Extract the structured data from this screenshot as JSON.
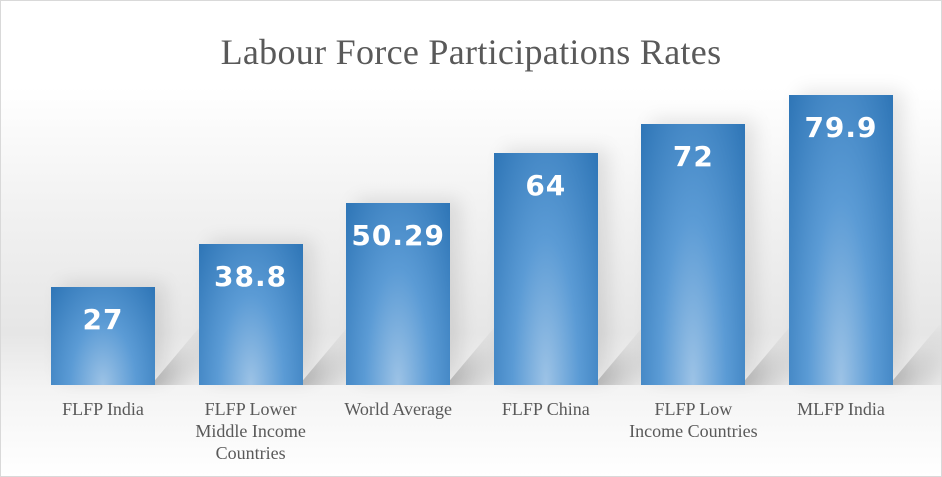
{
  "chart_data": {
    "type": "bar",
    "title": "Labour Force Participations Rates",
    "categories": [
      [
        "FLFP India"
      ],
      [
        "FLFP Lower",
        "Middle Income",
        "Countries"
      ],
      [
        "World Average"
      ],
      [
        "FLFP China"
      ],
      [
        "FLFP Low",
        "Income Countries"
      ],
      [
        "MLFP India"
      ]
    ],
    "values": [
      27,
      38.8,
      50.29,
      64,
      72,
      79.9
    ],
    "data_labels": [
      "27",
      "38.8",
      "50.29",
      "64",
      "72",
      "79.9"
    ],
    "ylim": [
      0,
      80
    ],
    "gridlines": false,
    "legend": "none",
    "colors": {
      "bar_top": "#2e75b6",
      "bar_mid": "#5b9bd5",
      "bar_bottom": "#9dc3e6",
      "label": "#ffffff",
      "text": "#595959"
    }
  }
}
